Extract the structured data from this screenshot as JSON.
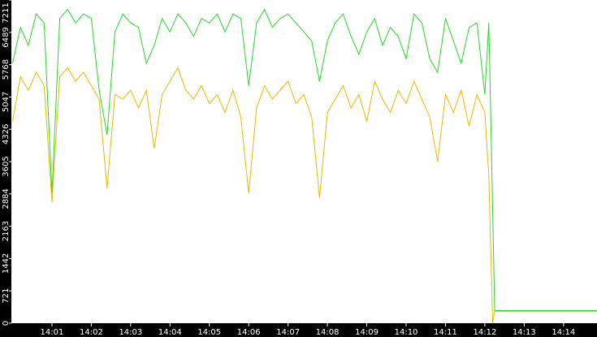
{
  "chart_data": {
    "type": "line",
    "x": [
      0,
      0.2,
      0.4,
      0.6,
      0.8,
      1.0,
      1.2,
      1.4,
      1.6,
      1.8,
      2.0,
      2.2,
      2.4,
      2.6,
      2.8,
      3.0,
      3.2,
      3.4,
      3.6,
      3.8,
      4.0,
      4.2,
      4.4,
      4.6,
      4.8,
      5.0,
      5.2,
      5.4,
      5.6,
      5.8,
      6.0,
      6.2,
      6.4,
      6.6,
      6.8,
      7.0,
      7.2,
      7.4,
      7.6,
      7.8,
      8.0,
      8.2,
      8.4,
      8.6,
      8.8,
      9.0,
      9.2,
      9.4,
      9.6,
      9.8,
      10.0,
      10.2,
      10.4,
      10.6,
      10.8,
      11.0,
      11.2,
      11.4,
      11.6,
      11.8,
      12.0,
      12.1,
      12.2,
      12.25,
      14.85
    ],
    "series": [
      {
        "color": "#22dd22",
        "values": [
          5800,
          6600,
          6200,
          6900,
          6700,
          2900,
          6800,
          7000,
          6700,
          6900,
          6800,
          5200,
          4200,
          6500,
          6900,
          6700,
          6600,
          5800,
          6200,
          6800,
          6500,
          6900,
          6700,
          6400,
          6800,
          6700,
          6900,
          6500,
          6900,
          6800,
          5300,
          6700,
          7000,
          6600,
          6800,
          6900,
          6700,
          6500,
          6300,
          5400,
          6300,
          6700,
          6900,
          6400,
          6000,
          6500,
          6800,
          6200,
          6600,
          6400,
          5900,
          6900,
          6700,
          5900,
          5600,
          6800,
          6300,
          5800,
          6600,
          6700,
          5100,
          6700,
          2500,
          280,
          280
        ]
      },
      {
        "color": "#f0b800",
        "values": [
          4500,
          5500,
          5200,
          5600,
          5300,
          2700,
          5500,
          5700,
          5400,
          5600,
          5300,
          5000,
          3000,
          5100,
          5000,
          5200,
          4800,
          5200,
          3900,
          5100,
          5400,
          5700,
          5200,
          5000,
          5300,
          4900,
          5100,
          4700,
          5200,
          4600,
          2900,
          4800,
          5300,
          5000,
          5200,
          5400,
          4900,
          5100,
          4600,
          2800,
          4700,
          5000,
          5300,
          4800,
          5100,
          4500,
          5400,
          5000,
          4700,
          5200,
          4900,
          5400,
          5000,
          4600,
          3600,
          5100,
          4700,
          5200,
          4400,
          5100,
          4700,
          3300,
          0,
          260,
          260
        ]
      }
    ],
    "xlim": [
      0,
      14.85
    ],
    "xticks": [
      {
        "value": 1,
        "label": "14:01"
      },
      {
        "value": 2,
        "label": "14:02"
      },
      {
        "value": 3,
        "label": "14:03"
      },
      {
        "value": 4,
        "label": "14:04"
      },
      {
        "value": 5,
        "label": "14:05"
      },
      {
        "value": 6,
        "label": "14:06"
      },
      {
        "value": 7,
        "label": "14:07"
      },
      {
        "value": 8,
        "label": "14:08"
      },
      {
        "value": 9,
        "label": "14:09"
      },
      {
        "value": 10,
        "label": "14:10"
      },
      {
        "value": 11,
        "label": "14:11"
      },
      {
        "value": 12,
        "label": "14:12"
      },
      {
        "value": 13,
        "label": "14:13"
      },
      {
        "value": 14,
        "label": "14:14"
      }
    ],
    "ylim": [
      0,
      7211
    ],
    "yticks": [
      0,
      721,
      1442,
      2163,
      2884,
      3605,
      4326,
      5047,
      5768,
      6489,
      7211
    ]
  }
}
